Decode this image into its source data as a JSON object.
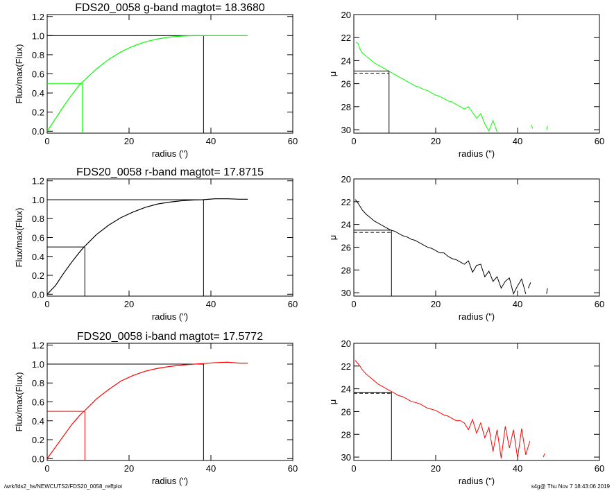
{
  "footer": {
    "path": "/wrk/fds2_hs/NEWCUTS2/FDS20_0058_reffplot",
    "stamp": "s4g@  Thu Nov  7 18:43:06 2019"
  },
  "chart_data": [
    {
      "type": "line",
      "title": "FDS20_0058 g-band  magtot=      18.3680",
      "xlabel": "radius (\")",
      "ylabel": "Flux/max(Flux)",
      "xlim": [
        0,
        60
      ],
      "ylim": [
        -0.02,
        1.22
      ],
      "xticks": [
        0,
        20,
        40,
        60
      ],
      "yticks": [
        "0.0",
        "0.2",
        "0.4",
        "0.6",
        "0.8",
        "1.0",
        "1.2"
      ],
      "color": "#00ff00",
      "curve": {
        "x": [
          0,
          2,
          4,
          6,
          8,
          9,
          12,
          15,
          18,
          21,
          24,
          27,
          30,
          33,
          36,
          38,
          41,
          44,
          47,
          49
        ],
        "y": [
          0.0,
          0.13,
          0.26,
          0.38,
          0.49,
          0.53,
          0.65,
          0.75,
          0.83,
          0.89,
          0.935,
          0.965,
          0.985,
          0.995,
          1.0,
          1.0,
          1.0,
          1.0,
          1.0,
          1.0
        ]
      },
      "half_light_radius": 8.6,
      "total_radius": 38.2
    },
    {
      "type": "line",
      "xlabel": "radius (\")",
      "ylabel": "μ",
      "xlim": [
        0,
        60
      ],
      "ylim": [
        30.3,
        20
      ],
      "xticks": [
        0,
        20,
        40,
        60
      ],
      "yticks": [
        "20",
        "22",
        "24",
        "26",
        "28",
        "30"
      ],
      "color": "#00ff00",
      "profile": {
        "x": [
          0.5,
          1.0,
          1.5,
          2.0,
          3.0,
          4.0,
          5.0,
          6.0,
          7.0,
          8.0,
          9.0,
          10.0,
          11.0,
          12.0,
          13.0,
          14.0,
          15.0,
          16.0,
          17.0,
          18.0,
          19.0,
          20.0,
          21.0,
          22.0,
          23.0,
          24.0,
          25.0,
          26.0,
          27.0,
          28.0,
          29.0,
          30.0,
          31.0,
          32.0,
          33.0,
          34.0,
          35.0
        ],
        "y": [
          22.4,
          22.5,
          23.0,
          23.3,
          23.6,
          23.9,
          24.2,
          24.4,
          24.6,
          24.8,
          25.0,
          25.2,
          25.4,
          25.6,
          25.8,
          26.0,
          26.2,
          26.3,
          26.5,
          26.6,
          26.8,
          27.0,
          27.1,
          27.3,
          27.5,
          27.6,
          27.8,
          28.0,
          28.2,
          28.0,
          28.5,
          29.0,
          28.6,
          29.5,
          30.1,
          29.2,
          30.2
        ]
      },
      "noise_tail": {
        "x": [
          43.4,
          43.7,
          47.1,
          47.3
        ],
        "y": [
          29.6,
          29.9,
          30.0,
          29.7
        ]
      },
      "eff_radius": 8.6,
      "mu_eff": 24.9,
      "mean_mu_eff": 25.1
    },
    {
      "type": "line",
      "title": "FDS20_0058 r-band  magtot=      17.8715",
      "xlabel": "radius (\")",
      "ylabel": "Flux/max(Flux)",
      "xlim": [
        0,
        60
      ],
      "ylim": [
        -0.02,
        1.22
      ],
      "xticks": [
        0,
        20,
        40,
        60
      ],
      "yticks": [
        "0.0",
        "0.2",
        "0.4",
        "0.6",
        "0.8",
        "1.0",
        "1.2"
      ],
      "color": "#000000",
      "curve": {
        "x": [
          0,
          2,
          4,
          6,
          8,
          9,
          12,
          15,
          18,
          21,
          24,
          27,
          30,
          33,
          36,
          38,
          41,
          44,
          47,
          49
        ],
        "y": [
          0.0,
          0.09,
          0.22,
          0.34,
          0.45,
          0.5,
          0.63,
          0.73,
          0.81,
          0.87,
          0.92,
          0.955,
          0.975,
          0.99,
          0.998,
          1.0,
          1.01,
          1.01,
          1.005,
          1.005
        ]
      },
      "half_light_radius": 9.2,
      "total_radius": 38.2
    },
    {
      "type": "line",
      "xlabel": "radius (\")",
      "ylabel": "μ",
      "xlim": [
        0,
        60
      ],
      "ylim": [
        30.3,
        20
      ],
      "xticks": [
        0,
        20,
        40,
        60
      ],
      "yticks": [
        "20",
        "22",
        "24",
        "26",
        "28",
        "30"
      ],
      "color": "#000000",
      "profile": {
        "x": [
          0.3,
          0.8,
          1.5,
          2.0,
          3.0,
          4.0,
          5.0,
          6.0,
          7.0,
          8.0,
          9.0,
          10.0,
          11.0,
          12.0,
          13.0,
          14.0,
          15.0,
          16.0,
          17.0,
          18.0,
          19.0,
          20.0,
          21.0,
          22.0,
          23.0,
          24.0,
          25.0,
          26.0,
          27.0,
          28.0,
          29.0,
          30.0,
          31.0,
          32.0,
          33.0,
          34.0,
          35.0,
          36.0,
          37.0,
          38.0,
          39.0,
          40.0,
          41.0,
          42.0
        ],
        "y": [
          21.8,
          22.0,
          22.4,
          22.7,
          23.1,
          23.4,
          23.7,
          23.9,
          24.1,
          24.3,
          24.5,
          24.6,
          24.8,
          25.0,
          25.1,
          25.3,
          25.4,
          25.6,
          25.8,
          26.0,
          26.1,
          26.3,
          26.5,
          26.5,
          26.8,
          27.0,
          27.1,
          27.3,
          27.5,
          27.2,
          28.2,
          27.6,
          27.5,
          28.6,
          28.1,
          29.0,
          28.6,
          29.6,
          29.0,
          28.7,
          30.1,
          29.4,
          28.8,
          30.1
        ]
      },
      "noise_tail": {
        "x": [
          42.6,
          43.2,
          47.1,
          47.3
        ],
        "y": [
          29.6,
          29.1,
          30.1,
          29.6
        ]
      },
      "eff_radius": 9.2,
      "mu_eff": 24.5,
      "mean_mu_eff": 24.7
    },
    {
      "type": "line",
      "title": "FDS20_0058 i-band  magtot=      17.5772",
      "xlabel": "radius (\")",
      "ylabel": "Flux/max(Flux)",
      "xlim": [
        0,
        60
      ],
      "ylim": [
        -0.02,
        1.22
      ],
      "xticks": [
        0,
        20,
        40,
        60
      ],
      "yticks": [
        "0.0",
        "0.2",
        "0.4",
        "0.6",
        "0.8",
        "1.0",
        "1.2"
      ],
      "color": "#ff0000",
      "curve": {
        "x": [
          0,
          2,
          4,
          6,
          8,
          9,
          12,
          15,
          18,
          21,
          24,
          27,
          30,
          33,
          36,
          38,
          41,
          44,
          47,
          49
        ],
        "y": [
          0.0,
          0.12,
          0.24,
          0.36,
          0.46,
          0.5,
          0.63,
          0.73,
          0.82,
          0.88,
          0.925,
          0.955,
          0.975,
          0.99,
          1.0,
          1.005,
          1.015,
          1.02,
          1.01,
          1.01
        ]
      },
      "half_light_radius": 9.2,
      "total_radius": 38.2
    },
    {
      "type": "line",
      "xlabel": "radius (\")",
      "ylabel": "μ",
      "xlim": [
        0,
        60
      ],
      "ylim": [
        30.3,
        20
      ],
      "xticks": [
        0,
        20,
        40,
        60
      ],
      "yticks": [
        "20",
        "22",
        "24",
        "26",
        "28",
        "30"
      ],
      "color": "#ff0000",
      "profile": {
        "x": [
          0.3,
          0.8,
          1.5,
          2.0,
          3.0,
          4.0,
          5.0,
          6.0,
          7.0,
          8.0,
          9.0,
          10.0,
          11.0,
          12.0,
          13.0,
          14.0,
          15.0,
          16.0,
          17.0,
          18.0,
          19.0,
          20.0,
          21.0,
          22.0,
          23.0,
          24.0,
          25.0,
          26.0,
          27.0,
          28.0,
          29.0,
          30.0,
          31.0,
          32.0,
          33.0,
          34.0,
          35.0,
          36.0,
          37.0,
          38.0,
          39.0,
          40.0,
          41.0,
          42.0,
          43.0
        ],
        "y": [
          21.5,
          21.7,
          22.0,
          22.3,
          22.7,
          23.0,
          23.3,
          23.6,
          23.8,
          24.0,
          24.2,
          24.4,
          24.6,
          24.7,
          24.9,
          25.1,
          25.2,
          25.3,
          25.5,
          25.7,
          25.8,
          25.9,
          26.1,
          26.3,
          26.4,
          26.6,
          26.8,
          26.8,
          27.0,
          27.6,
          26.7,
          27.9,
          27.0,
          28.3,
          27.4,
          29.5,
          27.6,
          30.1,
          27.3,
          29.2,
          27.6,
          30.1,
          27.5,
          29.8,
          28.6
        ]
      },
      "noise_tail": {
        "x": [
          46.3,
          46.6
        ],
        "y": [
          30.0,
          29.7
        ]
      },
      "eff_radius": 9.2,
      "mu_eff": 24.3,
      "mean_mu_eff": 24.4
    }
  ]
}
